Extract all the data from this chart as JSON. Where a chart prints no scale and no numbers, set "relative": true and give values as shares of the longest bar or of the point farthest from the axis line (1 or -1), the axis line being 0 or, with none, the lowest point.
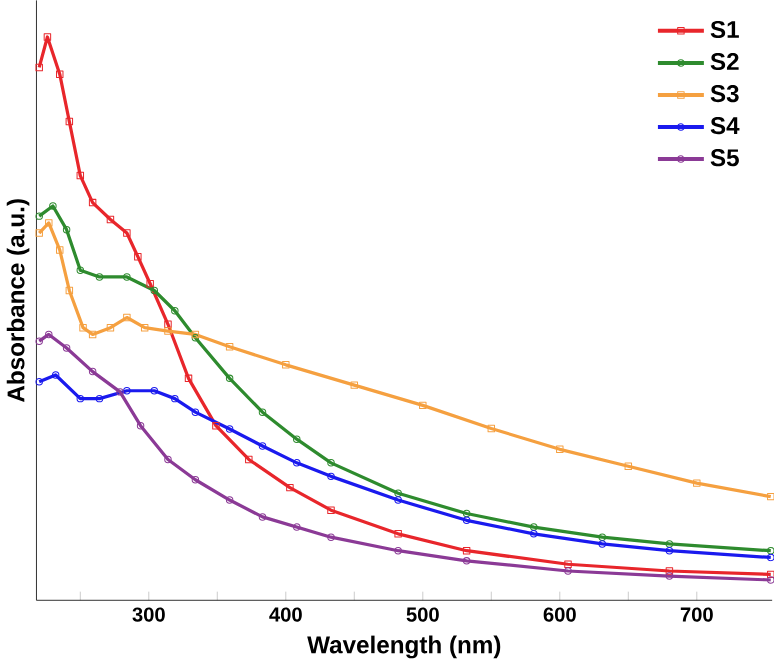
{
  "chart_data": {
    "type": "line",
    "relative": true,
    "xlabel": "Wavelength (nm)",
    "ylabel": "Absorbance (a.u.)",
    "xlim": [
      218,
      755
    ],
    "xticks": [
      {
        "value": 250,
        "label": null
      },
      300,
      {
        "value": 350,
        "label": null
      },
      400,
      {
        "value": 450,
        "label": null
      },
      500,
      {
        "value": 550,
        "label": null
      },
      600,
      {
        "value": 650,
        "label": null
      },
      700
    ],
    "legend": "top right",
    "grid": false,
    "series": [
      {
        "name": "S1",
        "color": "#e8262b",
        "marker": "square",
        "x": [
          220,
          226,
          235,
          242,
          250,
          259,
          272,
          284,
          292,
          301,
          314,
          329,
          349,
          373,
          403,
          433,
          482,
          532,
          606,
          680,
          754
        ],
        "values": [
          0.946,
          1.0,
          0.934,
          0.85,
          0.754,
          0.706,
          0.676,
          0.652,
          0.61,
          0.562,
          0.49,
          0.394,
          0.31,
          0.25,
          0.2,
          0.16,
          0.118,
          0.088,
          0.064,
          0.052,
          0.046
        ]
      },
      {
        "name": "S2",
        "color": "#2e8b2e",
        "marker": "circle",
        "x": [
          220,
          230,
          240,
          250,
          264,
          284,
          304,
          319,
          334,
          359,
          383,
          408,
          433,
          482,
          532,
          581,
          631,
          680,
          754
        ],
        "values": [
          0.682,
          0.7,
          0.658,
          0.586,
          0.574,
          0.574,
          0.55,
          0.514,
          0.466,
          0.394,
          0.334,
          0.286,
          0.244,
          0.19,
          0.154,
          0.13,
          0.112,
          0.1,
          0.088
        ]
      },
      {
        "name": "S3",
        "color": "#f5a040",
        "marker": "square",
        "x": [
          220,
          227,
          235,
          242,
          252,
          259,
          272,
          284,
          297,
          314,
          334,
          359,
          400,
          450,
          500,
          550,
          600,
          650,
          700,
          754
        ],
        "values": [
          0.652,
          0.67,
          0.622,
          0.55,
          0.484,
          0.472,
          0.484,
          0.502,
          0.484,
          0.478,
          0.472,
          0.45,
          0.418,
          0.382,
          0.346,
          0.305,
          0.268,
          0.238,
          0.208,
          0.184
        ]
      },
      {
        "name": "S4",
        "color": "#1a1aee",
        "marker": "circle",
        "x": [
          220,
          232,
          250,
          264,
          284,
          304,
          319,
          334,
          359,
          383,
          408,
          433,
          482,
          532,
          581,
          631,
          680,
          754
        ],
        "values": [
          0.388,
          0.4,
          0.358,
          0.358,
          0.372,
          0.372,
          0.358,
          0.334,
          0.304,
          0.274,
          0.244,
          0.22,
          0.178,
          0.142,
          0.118,
          0.1,
          0.088,
          0.076
        ]
      },
      {
        "name": "S5",
        "color": "#8b3a96",
        "marker": "circle",
        "x": [
          220,
          227,
          240,
          259,
          279,
          294,
          314,
          334,
          359,
          383,
          408,
          433,
          482,
          532,
          606,
          680,
          754
        ],
        "values": [
          0.46,
          0.472,
          0.448,
          0.406,
          0.37,
          0.31,
          0.25,
          0.214,
          0.178,
          0.148,
          0.13,
          0.112,
          0.088,
          0.07,
          0.052,
          0.043,
          0.036
        ]
      }
    ]
  }
}
